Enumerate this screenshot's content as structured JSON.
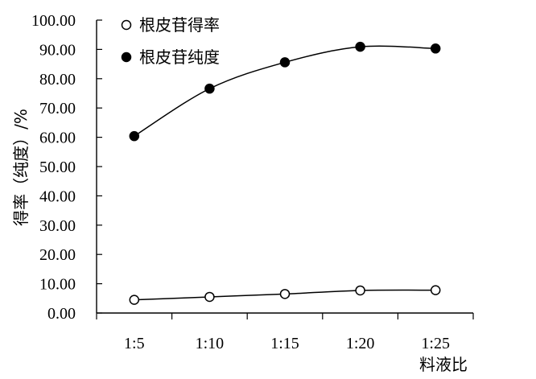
{
  "chart_data": {
    "type": "line",
    "categories": [
      "1:5",
      "1:10",
      "1:15",
      "1:20",
      "1:25"
    ],
    "xlabel": "料液比",
    "ylabel": "得率（纯度）/%",
    "ylim": [
      0,
      100
    ],
    "yticks": [
      "0.00",
      "10.00",
      "20.00",
      "30.00",
      "40.00",
      "50.00",
      "60.00",
      "70.00",
      "80.00",
      "90.00",
      "100.00"
    ],
    "grid": false,
    "legend_position": "top-left",
    "series": [
      {
        "name": "根皮苷得率",
        "marker": "open-circle",
        "values": [
          4.5,
          5.5,
          6.5,
          7.7,
          7.8
        ]
      },
      {
        "name": "根皮苷纯度",
        "marker": "filled-circle",
        "values": [
          60.4,
          76.6,
          85.6,
          90.9,
          90.3
        ]
      }
    ]
  }
}
